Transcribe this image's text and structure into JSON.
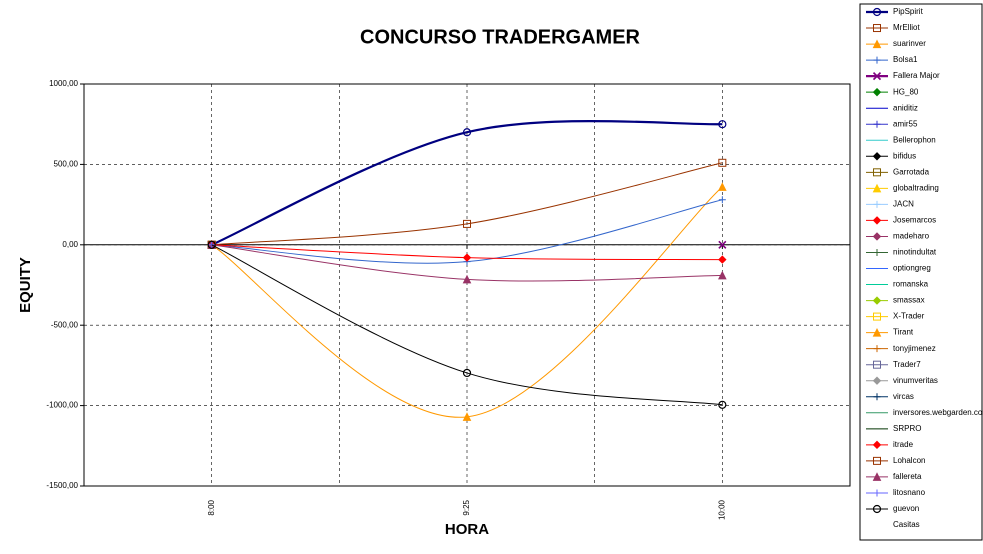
{
  "chart_data": {
    "type": "line",
    "title": "CONCURSO TRADERGAMER",
    "x_label": "HORA",
    "y_label": "EQUITY",
    "categories": [
      "8:00",
      "9:25",
      "10:00"
    ],
    "ylim": [
      -1500,
      1000
    ],
    "yticks": [
      {
        "value": -1500,
        "label": "-1500,00"
      },
      {
        "value": -1000,
        "label": "-1000,00"
      },
      {
        "value": -500,
        "label": "-500,00"
      },
      {
        "value": 0,
        "label": "0,00"
      },
      {
        "value": 500,
        "label": "500,00"
      },
      {
        "value": 1000,
        "label": "1000,00"
      }
    ],
    "grid": true,
    "legend": "right",
    "smooth": true,
    "series": [
      {
        "name": "PipSpirit",
        "color": "#000080",
        "marker": "circle",
        "values": [
          0,
          700,
          750
        ]
      },
      {
        "name": "MrElliot",
        "color": "#993300",
        "marker": "square",
        "values": [
          0,
          130,
          510
        ]
      },
      {
        "name": "suarinver",
        "color": "#ff9900",
        "marker": "triangle",
        "values": [
          0,
          -1070,
          360
        ]
      },
      {
        "name": "Bolsa1",
        "color": "#3366cc",
        "marker": "plus",
        "values": [
          0,
          -105,
          280
        ]
      },
      {
        "name": "Fallera Major",
        "color": "#800080",
        "marker": "cross",
        "values": [
          0,
          null,
          0
        ]
      },
      {
        "name": "HG_80",
        "color": "#008000",
        "marker": "diamond",
        "values": [
          0,
          null,
          null
        ]
      },
      {
        "name": "aniditiz",
        "color": "#0000cc",
        "marker": "none",
        "values": [
          0,
          null,
          null
        ]
      },
      {
        "name": "amir55",
        "color": "#3333cc",
        "marker": "plus",
        "values": [
          0,
          null,
          null
        ]
      },
      {
        "name": "Bellerophon",
        "color": "#33cccc",
        "marker": "none",
        "values": [
          0,
          null,
          null
        ]
      },
      {
        "name": "bifidus",
        "color": "#000000",
        "marker": "diamond",
        "values": [
          0,
          null,
          null
        ]
      },
      {
        "name": "Garrotada",
        "color": "#806000",
        "marker": "square",
        "values": [
          0,
          null,
          null
        ]
      },
      {
        "name": "globaltrading",
        "color": "#ffcc00",
        "marker": "triangle",
        "values": [
          0,
          null,
          null
        ]
      },
      {
        "name": "JACN",
        "color": "#99ccff",
        "marker": "plus",
        "values": [
          0,
          null,
          null
        ]
      },
      {
        "name": "Josemarcos",
        "color": "#ff0000",
        "marker": "diamond",
        "values": [
          0,
          -80,
          -92
        ]
      },
      {
        "name": "madeharo",
        "color": "#993366",
        "marker": "diamond",
        "values": [
          0,
          null,
          null
        ]
      },
      {
        "name": "ninotindultat",
        "color": "#336633",
        "marker": "plus",
        "values": [
          0,
          null,
          null
        ]
      },
      {
        "name": "optiongreg",
        "color": "#3366ff",
        "marker": "none",
        "values": [
          0,
          null,
          null
        ]
      },
      {
        "name": "romanska",
        "color": "#00cc99",
        "marker": "none",
        "values": [
          0,
          null,
          null
        ]
      },
      {
        "name": "smassax",
        "color": "#99cc00",
        "marker": "diamond",
        "values": [
          0,
          null,
          null
        ]
      },
      {
        "name": "X-Trader",
        "color": "#ffcc00",
        "marker": "square",
        "values": [
          0,
          null,
          null
        ]
      },
      {
        "name": "Tirant",
        "color": "#ff9900",
        "marker": "triangle",
        "values": [
          0,
          null,
          null
        ]
      },
      {
        "name": "tonyjimenez",
        "color": "#cc6600",
        "marker": "plus",
        "values": [
          0,
          null,
          null
        ]
      },
      {
        "name": "Trader7",
        "color": "#666699",
        "marker": "square",
        "values": [
          0,
          null,
          null
        ]
      },
      {
        "name": "vinumveritas",
        "color": "#999999",
        "marker": "diamond",
        "values": [
          0,
          null,
          null
        ]
      },
      {
        "name": "vircas",
        "color": "#003366",
        "marker": "plus",
        "values": [
          0,
          null,
          null
        ]
      },
      {
        "name": "inversores.webgarden.com",
        "color": "#339966",
        "marker": "none",
        "values": [
          0,
          null,
          null
        ]
      },
      {
        "name": "SRPRO",
        "color": "#003300",
        "marker": "none",
        "values": [
          0,
          null,
          null
        ]
      },
      {
        "name": "itrade",
        "color": "#ff0000",
        "marker": "diamond",
        "values": [
          0,
          null,
          null
        ]
      },
      {
        "name": "Lohalcon",
        "color": "#993300",
        "marker": "square",
        "values": [
          0,
          null,
          null
        ]
      },
      {
        "name": "fallereta",
        "color": "#993366",
        "marker": "triangle",
        "values": [
          0,
          -215,
          -190
        ]
      },
      {
        "name": "litosnano",
        "color": "#6666ff",
        "marker": "plus",
        "values": [
          0,
          null,
          null
        ]
      },
      {
        "name": "guevon",
        "color": "#000000",
        "marker": "circle",
        "values": [
          0,
          -797,
          -995
        ]
      },
      {
        "name": "Casitas",
        "color": "#ffffff",
        "marker": "none",
        "values": [
          null,
          null,
          null
        ]
      }
    ]
  }
}
